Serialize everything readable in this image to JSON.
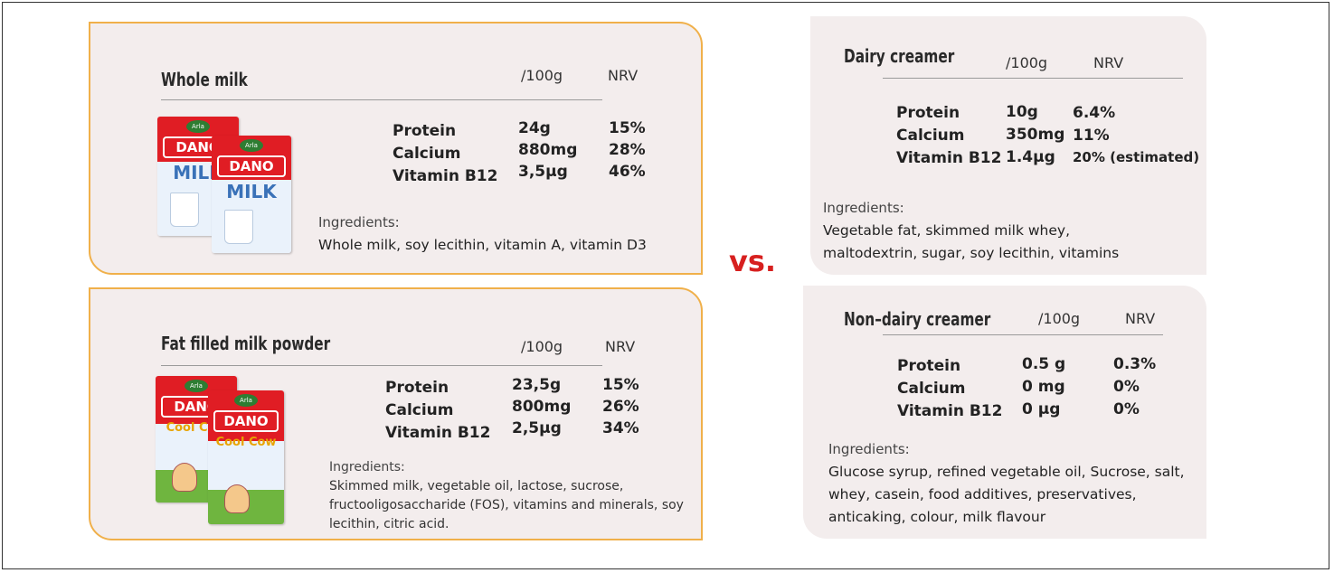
{
  "vs_label": "vs.",
  "colors": {
    "card_bg": "#f3eded",
    "card_border": "#f0b04a",
    "vs_color": "#d7201f",
    "pack_red": "#e01d24"
  },
  "cards": {
    "whole_milk": {
      "title": "Whole milk",
      "col_per": "/100g",
      "col_nrv": "NRV",
      "rows": [
        {
          "label": "Protein",
          "value": "24g",
          "nrv": "15%"
        },
        {
          "label": "Calcium",
          "value": "880mg",
          "nrv": "28%"
        },
        {
          "label": "Vitamin B12",
          "value": "3,5µg",
          "nrv": "46%"
        }
      ],
      "ingredients_heading": "Ingredients:",
      "ingredients": "Whole milk, soy lecithin, vitamin A, vitamin D3",
      "pack": {
        "brand": "DANO",
        "product": "MILK",
        "logo": "Arla"
      }
    },
    "fat_filled": {
      "title": "Fat filled milk powder",
      "col_per": "/100g",
      "col_nrv": "NRV",
      "rows": [
        {
          "label": "Protein",
          "value": "23,5g",
          "nrv": "15%"
        },
        {
          "label": "Calcium",
          "value": "800mg",
          "nrv": "26%"
        },
        {
          "label": "Vitamin B12",
          "value": "2,5µg",
          "nrv": "34%"
        }
      ],
      "ingredients_heading": "Ingredients:",
      "ingredients": "Skimmed milk, vegetable oil, lactose, sucrose, fructooligosaccharide (FOS), vitamins and minerals, soy lecithin, citric acid.",
      "pack": {
        "brand": "DANO",
        "product": "Cool Cow",
        "logo": "Arla"
      }
    },
    "dairy_creamer": {
      "title": "Dairy creamer",
      "col_per": "/100g",
      "col_nrv": "NRV",
      "rows": [
        {
          "label": "Protein",
          "value": "10g",
          "nrv": "6.4%"
        },
        {
          "label": "Calcium",
          "value": "350mg",
          "nrv": "11%"
        },
        {
          "label": "Vitamin B12",
          "value": "1.4µg",
          "nrv": "20% (estimated)"
        }
      ],
      "ingredients_heading": "Ingredients:",
      "ingredients": "Vegetable fat, skimmed milk whey, maltodextrin, sugar, soy lecithin, vitamins"
    },
    "non_dairy_creamer": {
      "title": "Non–dairy creamer",
      "col_per": "/100g",
      "col_nrv": "NRV",
      "rows": [
        {
          "label": "Protein",
          "value": "0.5 g",
          "nrv": "0.3%"
        },
        {
          "label": "Calcium",
          "value": "0 mg",
          "nrv": "0%"
        },
        {
          "label": "Vitamin B12",
          "value": "0 µg",
          "nrv": "0%"
        }
      ],
      "ingredients_heading": "Ingredients:",
      "ingredients": "Glucose syrup, refined vegetable oil, Sucrose, salt, whey, casein, food additives, preservatives, anticaking, colour, milk flavour"
    }
  }
}
